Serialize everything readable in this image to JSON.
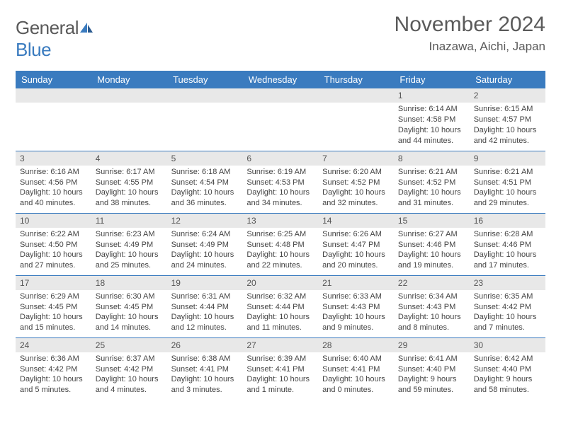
{
  "brand": {
    "name_part1": "General",
    "name_part2": "Blue"
  },
  "title": "November 2024",
  "location": "Inazawa, Aichi, Japan",
  "colors": {
    "header_bg": "#3a7bbf",
    "header_text": "#ffffff",
    "daynum_bg": "#e8e8e8",
    "row_border": "#3a7bbf",
    "body_text": "#444444",
    "title_text": "#5a5a5a"
  },
  "day_headers": [
    "Sunday",
    "Monday",
    "Tuesday",
    "Wednesday",
    "Thursday",
    "Friday",
    "Saturday"
  ],
  "weeks": [
    [
      {
        "blank": true
      },
      {
        "blank": true
      },
      {
        "blank": true
      },
      {
        "blank": true
      },
      {
        "blank": true
      },
      {
        "day": "1",
        "sunrise": "Sunrise: 6:14 AM",
        "sunset": "Sunset: 4:58 PM",
        "daylight": "Daylight: 10 hours and 44 minutes."
      },
      {
        "day": "2",
        "sunrise": "Sunrise: 6:15 AM",
        "sunset": "Sunset: 4:57 PM",
        "daylight": "Daylight: 10 hours and 42 minutes."
      }
    ],
    [
      {
        "day": "3",
        "sunrise": "Sunrise: 6:16 AM",
        "sunset": "Sunset: 4:56 PM",
        "daylight": "Daylight: 10 hours and 40 minutes."
      },
      {
        "day": "4",
        "sunrise": "Sunrise: 6:17 AM",
        "sunset": "Sunset: 4:55 PM",
        "daylight": "Daylight: 10 hours and 38 minutes."
      },
      {
        "day": "5",
        "sunrise": "Sunrise: 6:18 AM",
        "sunset": "Sunset: 4:54 PM",
        "daylight": "Daylight: 10 hours and 36 minutes."
      },
      {
        "day": "6",
        "sunrise": "Sunrise: 6:19 AM",
        "sunset": "Sunset: 4:53 PM",
        "daylight": "Daylight: 10 hours and 34 minutes."
      },
      {
        "day": "7",
        "sunrise": "Sunrise: 6:20 AM",
        "sunset": "Sunset: 4:52 PM",
        "daylight": "Daylight: 10 hours and 32 minutes."
      },
      {
        "day": "8",
        "sunrise": "Sunrise: 6:21 AM",
        "sunset": "Sunset: 4:52 PM",
        "daylight": "Daylight: 10 hours and 31 minutes."
      },
      {
        "day": "9",
        "sunrise": "Sunrise: 6:21 AM",
        "sunset": "Sunset: 4:51 PM",
        "daylight": "Daylight: 10 hours and 29 minutes."
      }
    ],
    [
      {
        "day": "10",
        "sunrise": "Sunrise: 6:22 AM",
        "sunset": "Sunset: 4:50 PM",
        "daylight": "Daylight: 10 hours and 27 minutes."
      },
      {
        "day": "11",
        "sunrise": "Sunrise: 6:23 AM",
        "sunset": "Sunset: 4:49 PM",
        "daylight": "Daylight: 10 hours and 25 minutes."
      },
      {
        "day": "12",
        "sunrise": "Sunrise: 6:24 AM",
        "sunset": "Sunset: 4:49 PM",
        "daylight": "Daylight: 10 hours and 24 minutes."
      },
      {
        "day": "13",
        "sunrise": "Sunrise: 6:25 AM",
        "sunset": "Sunset: 4:48 PM",
        "daylight": "Daylight: 10 hours and 22 minutes."
      },
      {
        "day": "14",
        "sunrise": "Sunrise: 6:26 AM",
        "sunset": "Sunset: 4:47 PM",
        "daylight": "Daylight: 10 hours and 20 minutes."
      },
      {
        "day": "15",
        "sunrise": "Sunrise: 6:27 AM",
        "sunset": "Sunset: 4:46 PM",
        "daylight": "Daylight: 10 hours and 19 minutes."
      },
      {
        "day": "16",
        "sunrise": "Sunrise: 6:28 AM",
        "sunset": "Sunset: 4:46 PM",
        "daylight": "Daylight: 10 hours and 17 minutes."
      }
    ],
    [
      {
        "day": "17",
        "sunrise": "Sunrise: 6:29 AM",
        "sunset": "Sunset: 4:45 PM",
        "daylight": "Daylight: 10 hours and 15 minutes."
      },
      {
        "day": "18",
        "sunrise": "Sunrise: 6:30 AM",
        "sunset": "Sunset: 4:45 PM",
        "daylight": "Daylight: 10 hours and 14 minutes."
      },
      {
        "day": "19",
        "sunrise": "Sunrise: 6:31 AM",
        "sunset": "Sunset: 4:44 PM",
        "daylight": "Daylight: 10 hours and 12 minutes."
      },
      {
        "day": "20",
        "sunrise": "Sunrise: 6:32 AM",
        "sunset": "Sunset: 4:44 PM",
        "daylight": "Daylight: 10 hours and 11 minutes."
      },
      {
        "day": "21",
        "sunrise": "Sunrise: 6:33 AM",
        "sunset": "Sunset: 4:43 PM",
        "daylight": "Daylight: 10 hours and 9 minutes."
      },
      {
        "day": "22",
        "sunrise": "Sunrise: 6:34 AM",
        "sunset": "Sunset: 4:43 PM",
        "daylight": "Daylight: 10 hours and 8 minutes."
      },
      {
        "day": "23",
        "sunrise": "Sunrise: 6:35 AM",
        "sunset": "Sunset: 4:42 PM",
        "daylight": "Daylight: 10 hours and 7 minutes."
      }
    ],
    [
      {
        "day": "24",
        "sunrise": "Sunrise: 6:36 AM",
        "sunset": "Sunset: 4:42 PM",
        "daylight": "Daylight: 10 hours and 5 minutes."
      },
      {
        "day": "25",
        "sunrise": "Sunrise: 6:37 AM",
        "sunset": "Sunset: 4:42 PM",
        "daylight": "Daylight: 10 hours and 4 minutes."
      },
      {
        "day": "26",
        "sunrise": "Sunrise: 6:38 AM",
        "sunset": "Sunset: 4:41 PM",
        "daylight": "Daylight: 10 hours and 3 minutes."
      },
      {
        "day": "27",
        "sunrise": "Sunrise: 6:39 AM",
        "sunset": "Sunset: 4:41 PM",
        "daylight": "Daylight: 10 hours and 1 minute."
      },
      {
        "day": "28",
        "sunrise": "Sunrise: 6:40 AM",
        "sunset": "Sunset: 4:41 PM",
        "daylight": "Daylight: 10 hours and 0 minutes."
      },
      {
        "day": "29",
        "sunrise": "Sunrise: 6:41 AM",
        "sunset": "Sunset: 4:40 PM",
        "daylight": "Daylight: 9 hours and 59 minutes."
      },
      {
        "day": "30",
        "sunrise": "Sunrise: 6:42 AM",
        "sunset": "Sunset: 4:40 PM",
        "daylight": "Daylight: 9 hours and 58 minutes."
      }
    ]
  ]
}
